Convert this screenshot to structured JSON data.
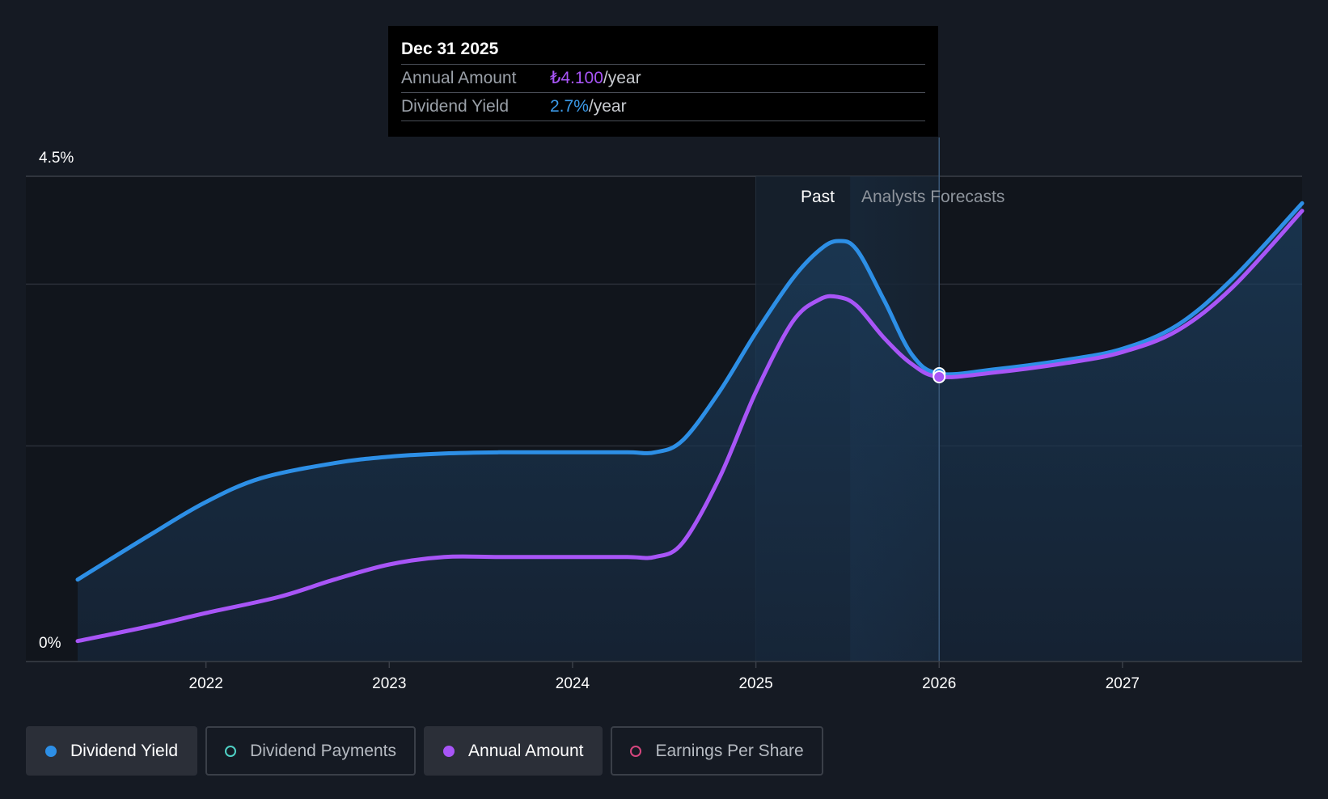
{
  "tooltip": {
    "date": "Dec 31 2025",
    "rows": [
      {
        "label": "Annual Amount",
        "value": "₺4.100",
        "unit": "/year"
      },
      {
        "label": "Dividend Yield",
        "value": "2.7%",
        "unit": "/year"
      }
    ]
  },
  "region_labels": {
    "past": "Past",
    "forecast": "Analysts Forecasts"
  },
  "legend": [
    {
      "label": "Dividend Yield",
      "active": true,
      "color": "#2d8fe6",
      "hollow": false
    },
    {
      "label": "Dividend Payments",
      "active": false,
      "color": "#4fd1c5",
      "hollow": true
    },
    {
      "label": "Annual Amount",
      "active": true,
      "color": "#a855f7",
      "hollow": false
    },
    {
      "label": "Earnings Per Share",
      "active": false,
      "color": "#d6467e",
      "hollow": true
    }
  ],
  "chart_data": {
    "type": "line",
    "title": "",
    "xlabel": "",
    "ylabel": "",
    "x_ticks": [
      "2022",
      "2023",
      "2024",
      "2025",
      "2026",
      "2027"
    ],
    "y_ticks": [
      "0%",
      "4.5%"
    ],
    "ylim": [
      0,
      4.5
    ],
    "xlim": [
      2021.3,
      2027.98
    ],
    "past_forecast_divider": 2026.0,
    "highlight_range": [
      2025.0,
      2026.0
    ],
    "grid": true,
    "legend_position": "bottom",
    "series": [
      {
        "name": "Dividend Yield",
        "color": "#2d8fe6",
        "unit": "%",
        "x": [
          2021.3,
          2021.7,
          2022.0,
          2022.3,
          2022.7,
          2023.0,
          2023.3,
          2023.6,
          2024.0,
          2024.3,
          2024.45,
          2024.6,
          2024.8,
          2025.0,
          2025.2,
          2025.35,
          2025.45,
          2025.55,
          2025.7,
          2025.85,
          2026.0,
          2026.3,
          2026.7,
          2027.0,
          2027.3,
          2027.6,
          2027.98
        ],
        "values": [
          0.76,
          1.18,
          1.48,
          1.7,
          1.84,
          1.9,
          1.93,
          1.94,
          1.94,
          1.94,
          1.94,
          2.05,
          2.5,
          3.05,
          3.55,
          3.82,
          3.9,
          3.82,
          3.35,
          2.85,
          2.67,
          2.71,
          2.8,
          2.9,
          3.12,
          3.55,
          4.25
        ]
      },
      {
        "name": "Annual Amount",
        "color": "#a855f7",
        "unit": "₺",
        "x": [
          2021.3,
          2021.7,
          2022.0,
          2022.4,
          2022.7,
          2023.0,
          2023.3,
          2023.6,
          2024.0,
          2024.3,
          2024.45,
          2024.6,
          2024.8,
          2025.0,
          2025.2,
          2025.35,
          2025.45,
          2025.55,
          2025.7,
          2025.85,
          2026.0,
          2026.3,
          2026.7,
          2027.0,
          2027.3,
          2027.6,
          2027.98
        ],
        "values": [
          0.19,
          0.33,
          0.45,
          0.6,
          0.76,
          0.9,
          0.97,
          0.97,
          0.97,
          0.97,
          0.97,
          1.1,
          1.7,
          2.5,
          3.15,
          3.36,
          3.38,
          3.3,
          3.0,
          2.76,
          2.64,
          2.68,
          2.77,
          2.87,
          3.07,
          3.47,
          4.18
        ]
      }
    ],
    "markers": [
      {
        "series": "Dividend Yield",
        "x": 2026.0,
        "y": 2.67
      },
      {
        "series": "Annual Amount",
        "x": 2026.0,
        "y": 2.64
      }
    ]
  }
}
